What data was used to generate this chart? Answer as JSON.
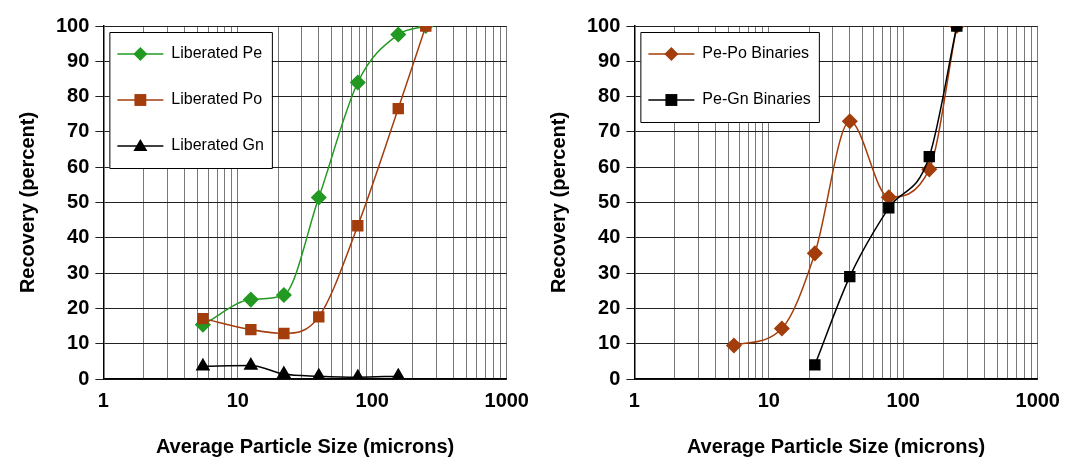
{
  "chart_data": [
    {
      "type": "line",
      "xlabel": "Average Particle Size (microns)",
      "ylabel": "Recovery (percent)",
      "log": "x",
      "xlim": [
        1,
        1000
      ],
      "xticks": [
        1,
        10,
        100,
        1000
      ],
      "ylim": [
        0,
        100
      ],
      "yticks": [
        0,
        10,
        20,
        30,
        40,
        50,
        60,
        70,
        80,
        90,
        100
      ],
      "grid": true,
      "legend": "top left",
      "series": [
        {
          "name": "Liberated Pe",
          "color": "#229a22",
          "marker": "diamond",
          "x": [
            5.5,
            12.5,
            22,
            40,
            78,
            156,
            250
          ],
          "values": [
            15.4,
            22.5,
            23.8,
            51.4,
            84,
            97.6,
            100
          ]
        },
        {
          "name": "Liberated Po",
          "color": "#a33d0c",
          "marker": "square",
          "x": [
            5.5,
            12.5,
            22,
            40,
            78,
            156,
            250
          ],
          "values": [
            17.1,
            14,
            12.9,
            17.6,
            43.4,
            76.6,
            100
          ]
        },
        {
          "name": "Liberated Gn",
          "color": "#000000",
          "marker": "triangle",
          "x": [
            5.5,
            12.5,
            22,
            40,
            78,
            156
          ],
          "values": [
            3.6,
            3.8,
            1.4,
            0.8,
            0.5,
            0.8
          ]
        }
      ]
    },
    {
      "type": "line",
      "xlabel": "Average Particle Size (microns)",
      "ylabel": "Recovery (percent)",
      "log": "x",
      "xlim": [
        1,
        1000
      ],
      "xticks": [
        1,
        10,
        100,
        1000
      ],
      "ylim": [
        0,
        100
      ],
      "yticks": [
        0,
        10,
        20,
        30,
        40,
        50,
        60,
        70,
        80,
        90,
        100
      ],
      "grid": true,
      "legend": "top left",
      "series": [
        {
          "name": "Pe-Po Binaries",
          "color": "#a33d0c",
          "marker": "diamond",
          "x": [
            5.5,
            12.5,
            22,
            40,
            78,
            156,
            250
          ],
          "values": [
            9.5,
            14.3,
            35.6,
            73,
            51.5,
            59.4,
            100
          ]
        },
        {
          "name": "Pe-Gn Binaries",
          "color": "#000000",
          "marker": "square",
          "x": [
            22,
            40,
            78,
            156,
            250
          ],
          "values": [
            4,
            29,
            48.5,
            63,
            100
          ]
        }
      ]
    }
  ]
}
